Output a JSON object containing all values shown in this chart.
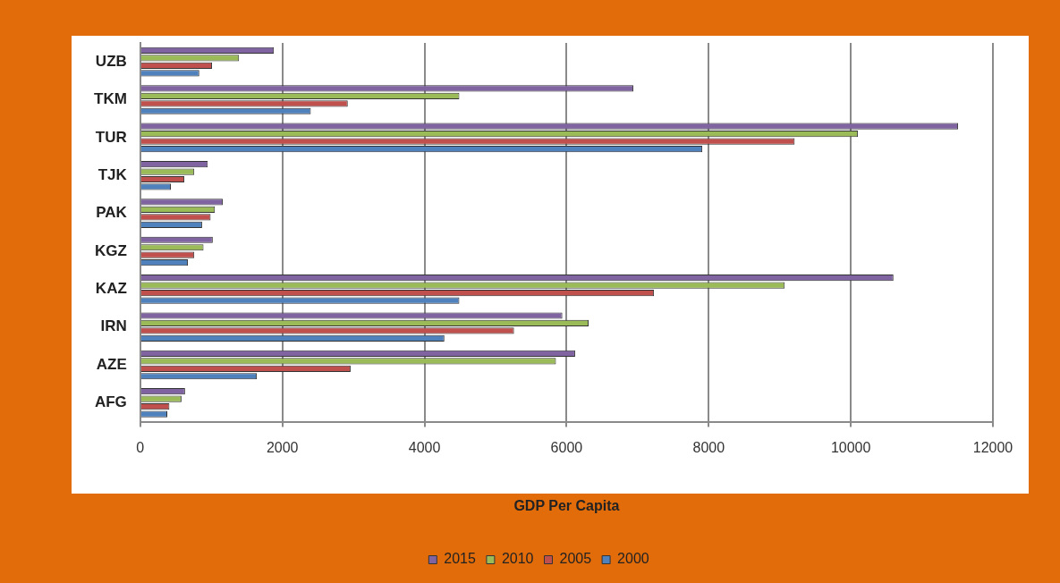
{
  "chart_data": {
    "type": "bar",
    "orientation": "horizontal",
    "xlabel": "GDP Per Capita",
    "categories": [
      "UZB",
      "TKM",
      "TUR",
      "TJK",
      "PAK",
      "KGZ",
      "KAZ",
      "IRN",
      "AZE",
      "AFG"
    ],
    "series": [
      {
        "name": "2015",
        "color": "#8064a2",
        "values": [
          1880,
          6940,
          11510,
          950,
          1160,
          1020,
          10600,
          5940,
          6120,
          630
        ]
      },
      {
        "name": "2010",
        "color": "#9bbb59",
        "values": [
          1390,
          4490,
          10100,
          760,
          1050,
          890,
          9070,
          6310,
          5850,
          580
        ]
      },
      {
        "name": "2005",
        "color": "#c0504d",
        "values": [
          1010,
          2920,
          9210,
          620,
          990,
          760,
          7230,
          5260,
          2960,
          410
        ]
      },
      {
        "name": "2000",
        "color": "#4f81bd",
        "values": [
          830,
          2400,
          7910,
          430,
          870,
          670,
          4490,
          4280,
          1640,
          380
        ]
      }
    ],
    "xlim": [
      0,
      12000
    ],
    "xticks": [
      0,
      2000,
      4000,
      6000,
      8000,
      10000,
      12000
    ],
    "grid": "x",
    "legend": "bottom"
  }
}
